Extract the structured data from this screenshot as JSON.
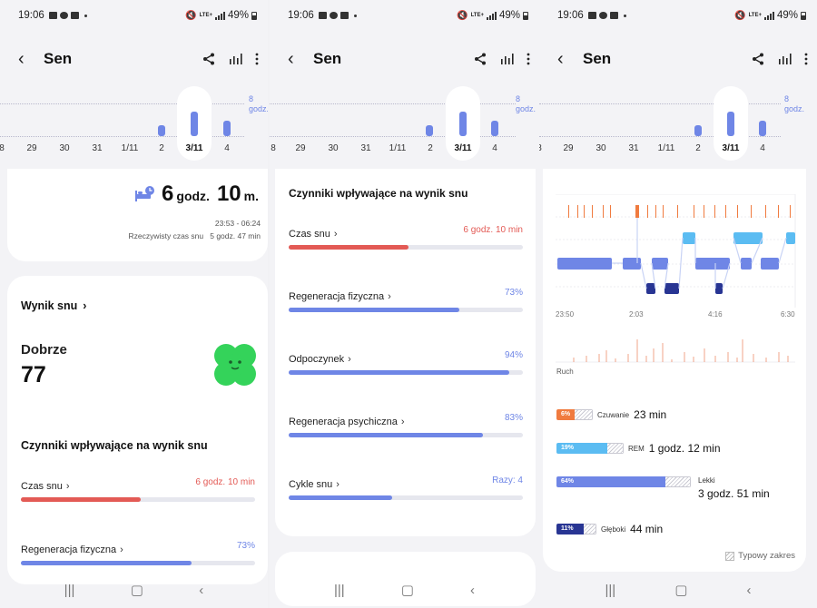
{
  "status": {
    "time": "19:06",
    "battery": "49%",
    "network": "LTE+"
  },
  "appbar": {
    "title": "Sen",
    "icons": [
      "back-icon",
      "share-icon",
      "chart-icon",
      "more-icon"
    ]
  },
  "week": {
    "labels": [
      "8",
      "29",
      "30",
      "31",
      "1/11",
      "2",
      "3/11",
      "4"
    ],
    "selected": "3/11",
    "goal": "8\ngodz.",
    "sleep_hours": [
      0,
      0,
      0,
      0,
      0,
      2.5,
      6.2,
      3.5
    ]
  },
  "summary": {
    "hours": "6",
    "hours_unit": "godz.",
    "minutes": "10",
    "minutes_unit": "m.",
    "range": "23:53 - 06:24",
    "actual_label": "Rzeczywisty czas snu",
    "actual_value": "5 godz. 47 min"
  },
  "score": {
    "title": "Wynik snu",
    "rating": "Dobrze",
    "value": "77"
  },
  "factors": {
    "title": "Czynniki wpływające na wynik snu",
    "items": [
      {
        "label": "Czas snu",
        "value": "6 godz. 10 min",
        "percent": 51,
        "color": "#e35a55"
      },
      {
        "label": "Regeneracja fizyczna",
        "value": "73%",
        "percent": 73,
        "color": "#6f86e6"
      },
      {
        "label": "Odpoczynek",
        "value": "94%",
        "percent": 94,
        "color": "#6f86e6"
      },
      {
        "label": "Regeneracja psychiczna",
        "value": "83%",
        "percent": 83,
        "color": "#6f86e6"
      },
      {
        "label": "Cykle snu",
        "value": "Razy: 4",
        "percent": 44,
        "color": "#6f86e6"
      }
    ]
  },
  "stages_chart": {
    "times": [
      "23:50",
      "2:03",
      "4:16",
      "6:30"
    ],
    "movement_label": "Ruch"
  },
  "stages": [
    {
      "pct": "6%",
      "name": "Czuwanie",
      "value": "23 min",
      "color": "#f07b3f",
      "fill": 6
    },
    {
      "pct": "19%",
      "name": "REM",
      "value": "1 godz. 12 min",
      "color": "#5bbcf2",
      "fill": 19
    },
    {
      "pct": "64%",
      "name": "Lekki",
      "value": "3 godz. 51 min",
      "color": "#6f86e6",
      "fill": 64
    },
    {
      "pct": "11%",
      "name": "Głęboki",
      "value": "44 min",
      "color": "#283593",
      "fill": 11
    }
  ],
  "typical_range": "Typowy zakres"
}
